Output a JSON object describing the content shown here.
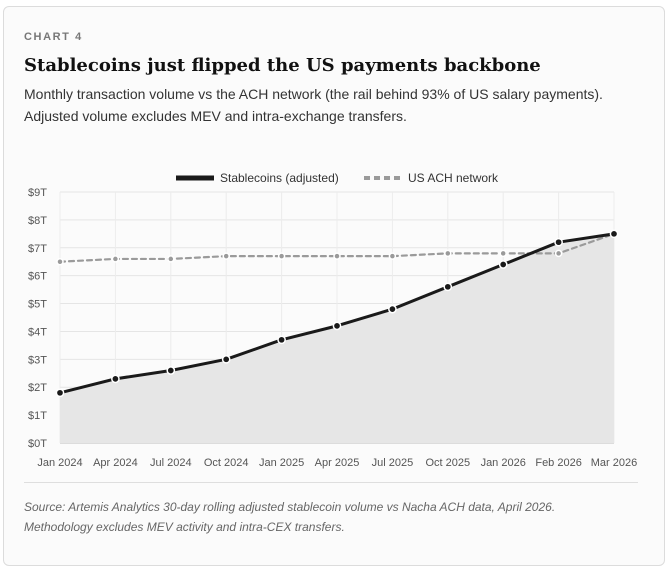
{
  "card": {
    "label": "CHART 4",
    "title": "Stablecoins just flipped the US payments backbone",
    "subtitle_line1": "Monthly transaction volume vs the ACH network (the rail behind 93% of US salary payments).",
    "subtitle_line2": "Adjusted volume excludes MEV and intra-exchange transfers.",
    "source_line1": "Source: Artemis Analytics 30-day rolling adjusted stablecoin volume vs Nacha ACH data, April 2026.",
    "source_line2": "Methodology excludes MEV activity and intra-CEX transfers."
  },
  "chart_data": {
    "type": "line",
    "categories": [
      "Jan 2024",
      "Apr 2024",
      "Jul 2024",
      "Oct 2024",
      "Jan 2025",
      "Apr 2025",
      "Jul 2025",
      "Oct 2025",
      "Jan 2026",
      "Feb 2026",
      "Mar 2026"
    ],
    "series": [
      {
        "name": "Stablecoins (adjusted)",
        "values": [
          1.8,
          2.3,
          2.6,
          3.0,
          3.7,
          4.2,
          4.8,
          5.6,
          6.4,
          7.2,
          7.5
        ],
        "color": "#1a1a1a",
        "style": "solid",
        "fill": "#e6e6e6"
      },
      {
        "name": "US ACH network",
        "values": [
          6.5,
          6.6,
          6.6,
          6.7,
          6.7,
          6.7,
          6.7,
          6.8,
          6.8,
          6.8,
          7.5
        ],
        "color": "#9a9a9a",
        "style": "dashed"
      }
    ],
    "y_ticks": [
      "$0T",
      "$1T",
      "$2T",
      "$3T",
      "$4T",
      "$5T",
      "$6T",
      "$7T",
      "$8T",
      "$9T"
    ],
    "ylim": [
      0,
      9
    ],
    "grid": true,
    "legend_position": "top-center"
  }
}
